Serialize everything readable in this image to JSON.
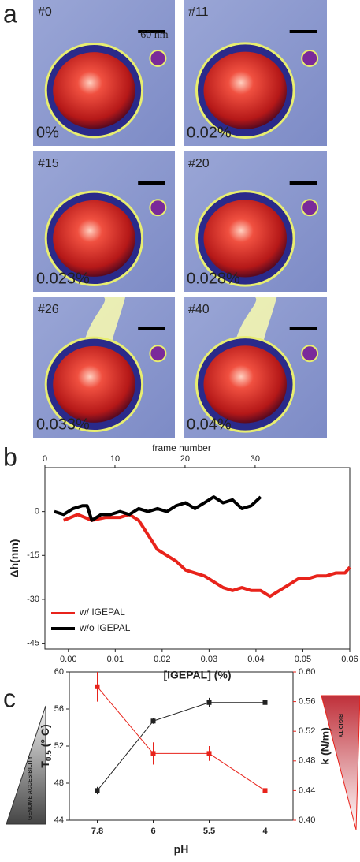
{
  "panel_a": {
    "label": "a",
    "scale_bar": "60 nm",
    "images": [
      {
        "frame": "#0",
        "concentration": "0%"
      },
      {
        "frame": "#11",
        "concentration": "0.02%"
      },
      {
        "frame": "#15",
        "concentration": "0.023%"
      },
      {
        "frame": "#20",
        "concentration": "0.028%"
      },
      {
        "frame": "#26",
        "concentration": "0.033%"
      },
      {
        "frame": "#40",
        "concentration": "0.04%"
      }
    ]
  },
  "panel_labels": {
    "b": "b",
    "c": "c"
  },
  "side_notes": {
    "left": "GENOME ACCESIBILITY",
    "right": "RIGIDITY"
  },
  "chart_data": [
    {
      "type": "line",
      "x_label": "[IGEPAL] (%)",
      "x2_label": "frame number",
      "y_label": "Δh(nm)",
      "xlim": [
        -0.005,
        0.06
      ],
      "xticks": [
        {
          "value": 0,
          "label": "0.00"
        },
        {
          "value": 0.01,
          "label": "0.01"
        },
        {
          "value": 0.02,
          "label": "0.02"
        },
        {
          "value": 0.03,
          "label": "0.03"
        },
        {
          "value": 0.04,
          "label": "0.04"
        },
        {
          "value": 0.05,
          "label": "0.05"
        },
        {
          "value": 0.06,
          "label": "0.06"
        }
      ],
      "x2lim": [
        0,
        43.5
      ],
      "x2ticks": [
        0,
        10,
        20,
        30
      ],
      "ylim": [
        -47,
        15
      ],
      "yticks": [
        0,
        -15,
        -30,
        -45
      ],
      "legend": "lower left",
      "series": [
        {
          "name": "w/   IGEPAL",
          "color": "#e8231b",
          "x": [
            -0.001,
            0.002,
            0.005,
            0.008,
            0.011,
            0.013,
            0.015,
            0.017,
            0.019,
            0.021,
            0.023,
            0.025,
            0.027,
            0.029,
            0.031,
            0.033,
            0.035,
            0.037,
            0.039,
            0.041,
            0.043,
            0.045,
            0.047,
            0.049,
            0.051,
            0.053,
            0.055,
            0.057,
            0.059,
            0.06
          ],
          "values": [
            -3,
            -1,
            -3,
            -2,
            -2,
            -1,
            -3,
            -8,
            -13,
            -15,
            -17,
            -20,
            -21,
            -22,
            -24,
            -26,
            -27,
            -26,
            -27,
            -27,
            -29,
            -27,
            -25,
            -23,
            -23,
            -22,
            -22,
            -21,
            -21,
            -19
          ]
        },
        {
          "name": "w/o IGEPAL",
          "color": "#000000",
          "x": [
            -0.003,
            -0.001,
            0.001,
            0.003,
            0.004,
            0.005,
            0.007,
            0.009,
            0.011,
            0.013,
            0.015,
            0.017,
            0.019,
            0.021,
            0.023,
            0.025,
            0.027,
            0.029,
            0.031,
            0.033,
            0.035,
            0.037,
            0.039,
            0.041
          ],
          "values": [
            0,
            -1,
            1,
            2,
            2,
            -3,
            -1,
            -1,
            0,
            -1,
            1,
            0,
            1,
            0,
            2,
            3,
            1,
            3,
            5,
            3,
            4,
            1,
            2,
            5
          ]
        }
      ]
    },
    {
      "type": "line",
      "x_label": "pH",
      "y_label": "T",
      "y_label_sub": "0.5",
      "y_label_unit": " (° C)",
      "y2_label": "k (N/m)",
      "categories": [
        "7.8",
        "6",
        "5.5",
        "4"
      ],
      "ylim": [
        44,
        60
      ],
      "yticks": [
        44,
        48,
        52,
        56,
        60
      ],
      "y2lim": [
        0.4,
        0.6
      ],
      "y2ticks": [
        {
          "value": 0.4,
          "label": "0.40"
        },
        {
          "value": 0.44,
          "label": "0.44"
        },
        {
          "value": 0.48,
          "label": "0.48"
        },
        {
          "value": 0.52,
          "label": "0.52"
        },
        {
          "value": 0.56,
          "label": "0.56"
        },
        {
          "value": 0.6,
          "label": "0.60"
        }
      ],
      "series": [
        {
          "color": "#222222",
          "values": [
            47.2,
            54.7,
            56.7,
            56.7
          ],
          "errors": [
            0.4,
            0.3,
            0.5,
            0.3
          ]
        },
        {
          "color": "#e8231b",
          "axis": "y2",
          "values": [
            0.58,
            0.49,
            0.49,
            0.44
          ],
          "errors": [
            0.02,
            0.015,
            0.01,
            0.02
          ]
        }
      ]
    }
  ]
}
